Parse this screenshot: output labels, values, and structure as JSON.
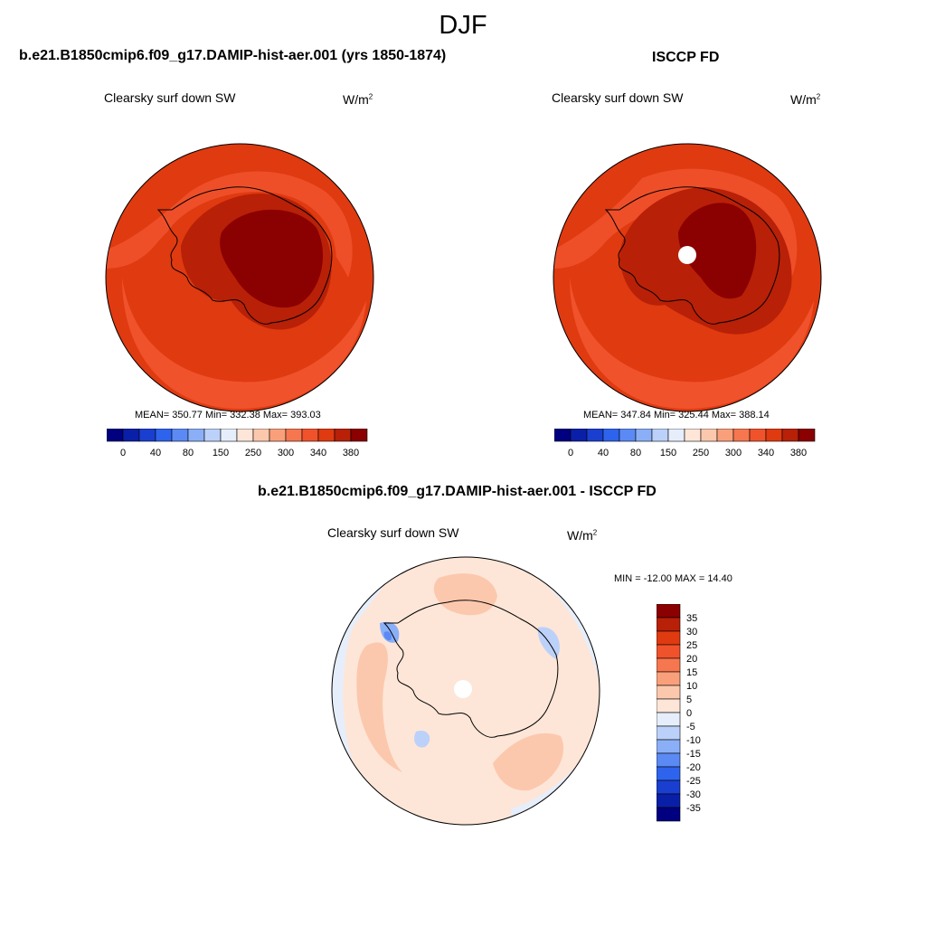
{
  "figure": {
    "season": "DJF",
    "panels": [
      {
        "title": "b.e21.B1850cmip6.f09_g17.DAMIP-hist-aer.001 (yrs 1850-1874)",
        "variable": "Clearsky surf down SW",
        "units_base": "W/m",
        "units_exp": "2",
        "stats": "MEAN= 350.77  Min= 332.38  Max= 393.03"
      },
      {
        "title": "ISCCP FD",
        "variable": "Clearsky surf down SW",
        "units_base": "W/m",
        "units_exp": "2",
        "stats": "MEAN= 347.84  Min= 325.44  Max= 388.14"
      },
      {
        "title": "b.e21.B1850cmip6.f09_g17.DAMIP-hist-aer.001 - ISCCP FD",
        "variable": "Clearsky surf down SW",
        "units_base": "W/m",
        "units_exp": "2",
        "stats": "MIN = -12.00 MAX =  14.40"
      }
    ],
    "abs_colorbar": {
      "colors": [
        "#000080",
        "#0a1fa8",
        "#1a3fd0",
        "#2e63ee",
        "#5b8af5",
        "#8aaff7",
        "#bcd1f9",
        "#e6eefb",
        "#fde6d8",
        "#fcc8ad",
        "#f9a07b",
        "#f6774f",
        "#f0522c",
        "#e03a10",
        "#b82008",
        "#8b0000"
      ],
      "labels": [
        "0",
        "40",
        "80",
        "150",
        "250",
        "300",
        "340",
        "380"
      ]
    },
    "diff_colorbar": {
      "colors": [
        "#8b0000",
        "#b82008",
        "#e03a10",
        "#f0522c",
        "#f6774f",
        "#f9a07b",
        "#fcc8ad",
        "#fde6d8",
        "#e6eefb",
        "#bcd1f9",
        "#8aaff7",
        "#5b8af5",
        "#2e63ee",
        "#1a3fd0",
        "#0a1fa8",
        "#000080"
      ],
      "labels": [
        "35",
        "30",
        "25",
        "20",
        "15",
        "10",
        "5",
        "0",
        "-5",
        "-10",
        "-15",
        "-20",
        "-25",
        "-30",
        "-35"
      ]
    }
  }
}
